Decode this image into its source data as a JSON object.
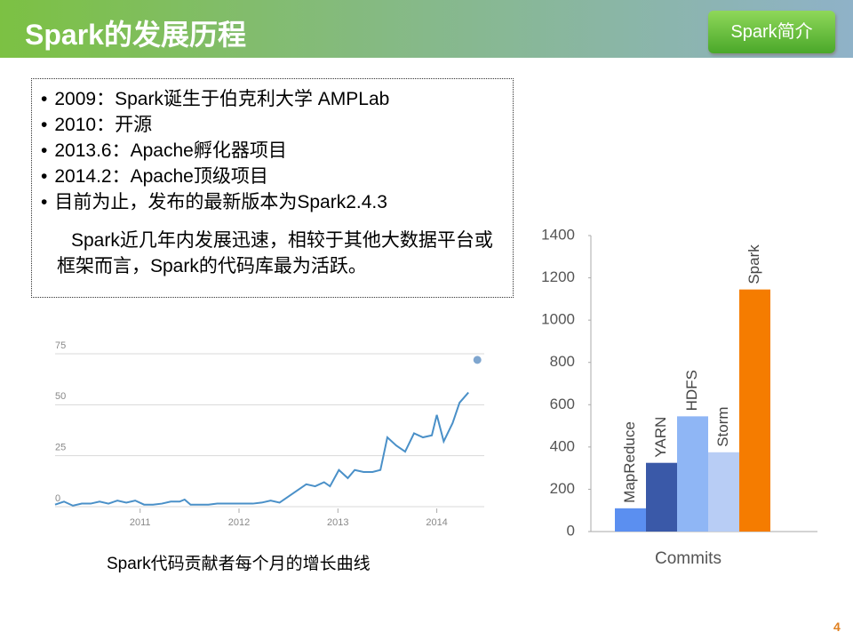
{
  "header": {
    "title": "Spark的发展历程",
    "button": "Spark简介"
  },
  "bullets": [
    "2009：Spark诞生于伯克利大学 AMPLab",
    "2010：开源",
    "2013.6：Apache孵化器项目",
    "2014.2：Apache顶级项目",
    "目前为止，发布的最新版本为Spark2.4.3"
  ],
  "paragraph": "Spark近几年内发展迅速，相较于其他大数据平台或框架而言，Spark的代码库最为活跃。",
  "caption": "Spark代码贡献者每个月的增长曲线",
  "page_number": "4",
  "chart_data": [
    {
      "type": "line",
      "series": [
        {
          "color": "#4a90c8",
          "x": [
            2010.14,
            2010.23,
            2010.32,
            2010.41,
            2010.5,
            2010.59,
            2010.68,
            2010.77,
            2010.86,
            2010.95,
            2011.04,
            2011.13,
            2011.22,
            2011.31,
            2011.4,
            2011.45,
            2011.51,
            2011.6,
            2011.69,
            2011.78,
            2011.87,
            2012.01,
            2012.14,
            2012.23,
            2012.32,
            2012.41,
            2012.5,
            2012.59,
            2012.68,
            2012.77,
            2012.86,
            2012.92,
            2013.01,
            2013.1,
            2013.17,
            2013.26,
            2013.35,
            2013.43,
            2013.5,
            2013.59,
            2013.68,
            2013.77,
            2013.86,
            2013.95,
            2014.0,
            2014.07,
            2014.16,
            2014.23,
            2014.32
          ],
          "values": [
            1,
            2.5,
            0.5,
            1.5,
            1.5,
            2.5,
            1.5,
            3,
            2,
            3,
            1,
            1,
            1.5,
            2.5,
            2.5,
            3.5,
            1,
            1,
            1,
            1.5,
            1.5,
            1.5,
            1.5,
            2,
            3,
            2,
            5,
            8,
            11,
            10,
            12,
            10,
            18,
            14,
            18,
            17,
            17,
            18,
            34,
            30,
            27,
            36,
            34,
            35,
            45,
            32,
            41,
            51,
            56
          ]
        },
        {
          "color": "#7fa6cf",
          "x": [
            2014.41
          ],
          "values": [
            72
          ]
        }
      ],
      "xlim": [
        2010.14,
        2014.48
      ],
      "xticks": [
        2011,
        2012,
        2013,
        2014
      ],
      "ylim": [
        0,
        75
      ],
      "yticks": [
        0,
        25,
        50,
        75
      ],
      "grid": true
    },
    {
      "type": "bar",
      "xlabel": "Commits",
      "categories": [
        "MapReduce",
        "YARN",
        "HDFS",
        "Storm",
        "Spark"
      ],
      "values": [
        110,
        325,
        545,
        375,
        1145
      ],
      "colors": [
        "#5b8ff0",
        "#3a59a8",
        "#8fb6f5",
        "#b8cdf5",
        "#f57c00"
      ],
      "ylim": [
        0,
        1400
      ],
      "yticks": [
        0,
        200,
        400,
        600,
        800,
        1000,
        1200,
        1400
      ],
      "grid": false
    }
  ]
}
